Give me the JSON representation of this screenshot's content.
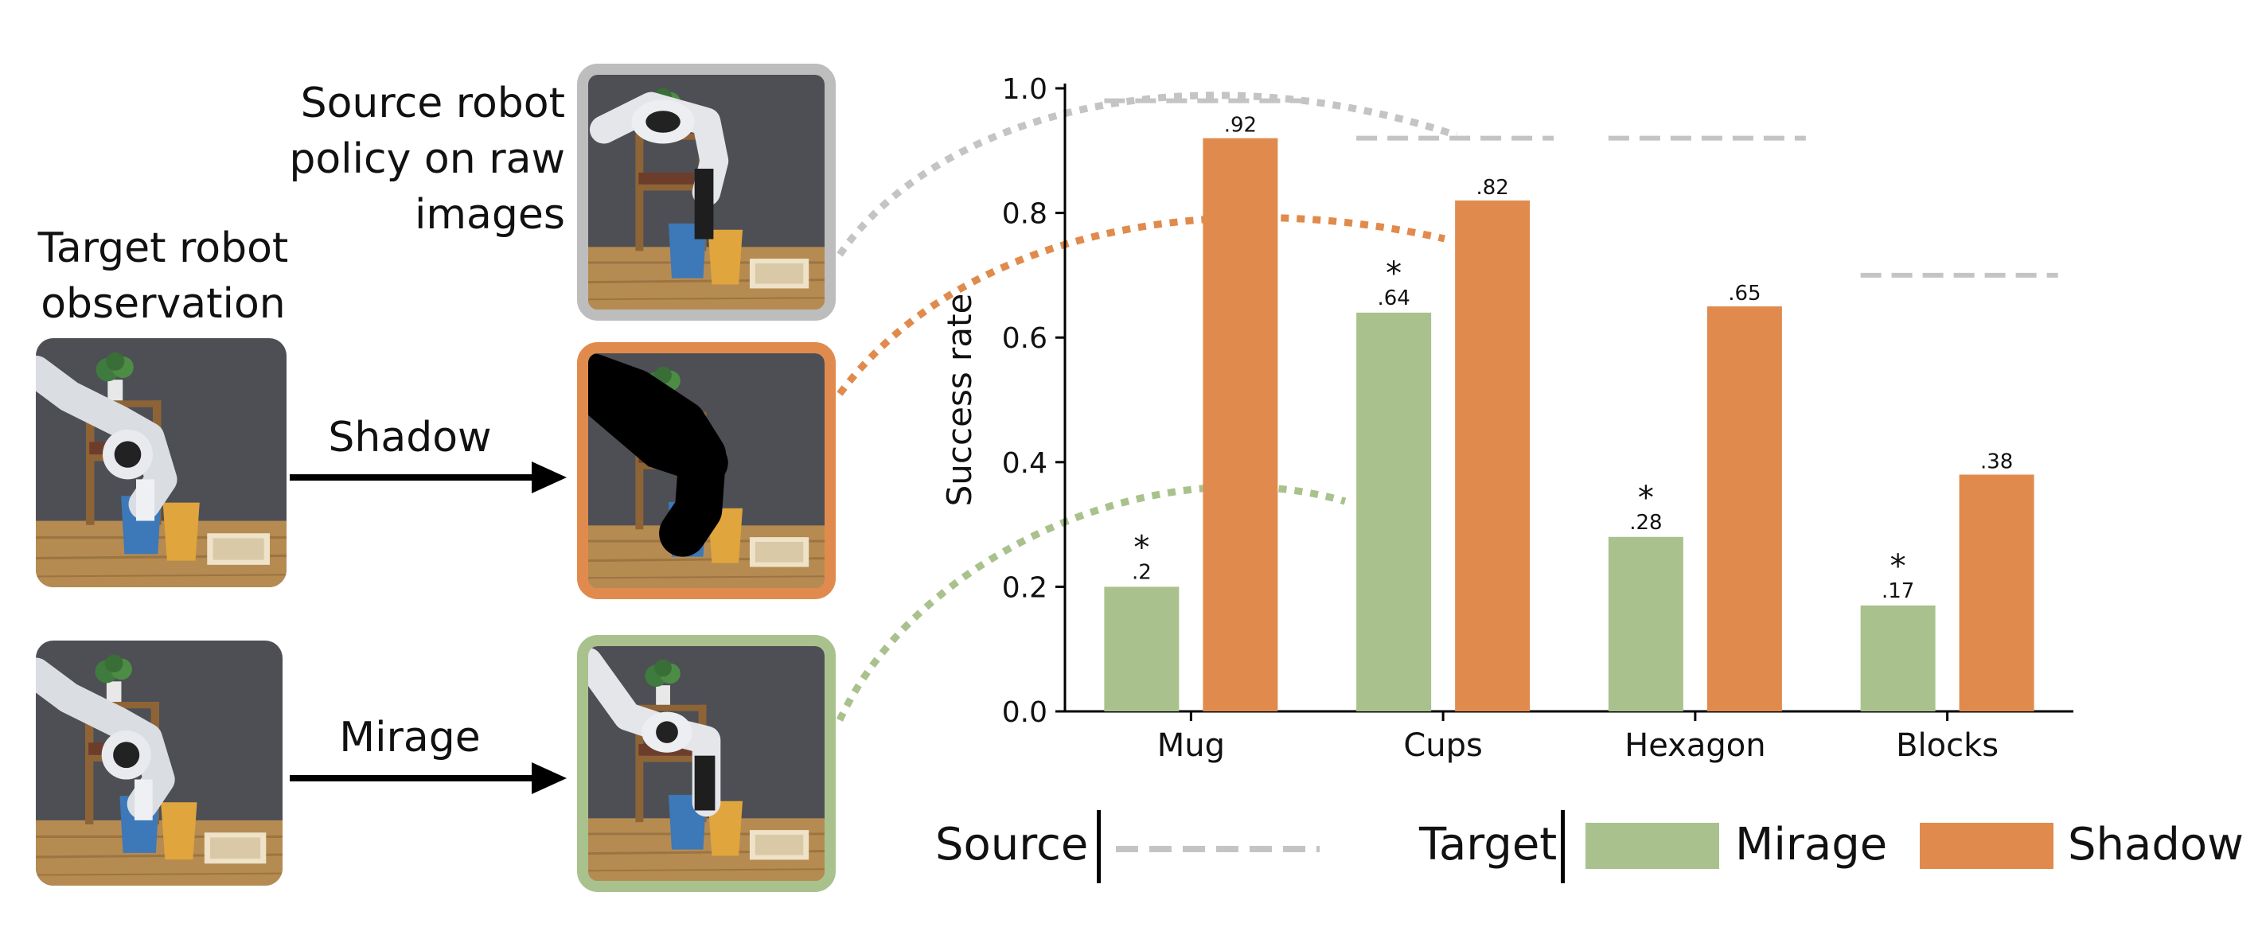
{
  "labels": {
    "source_policy": [
      "Source robot",
      "policy on raw",
      "images"
    ],
    "target_observation": [
      "Target robot",
      "observation"
    ],
    "shadow_arrow": "Shadow",
    "mirage_arrow": "Mirage"
  },
  "legend": {
    "source": "Source",
    "target": "Target",
    "mirage": "Mirage",
    "shadow": "Shadow"
  },
  "colors": {
    "mirage": "#a9c28d",
    "shadow": "#e08b4d",
    "source": "#c4c4c4",
    "source_frame": "#bdbdbd",
    "shadow_frame": "#e08b4d",
    "mirage_frame": "#a9c28d"
  },
  "chart_data": {
    "type": "bar",
    "ylabel": "Success rate",
    "ylim": [
      0,
      1.0
    ],
    "yticks": [
      "0.0",
      "0.2",
      "0.4",
      "0.6",
      "0.8",
      "1.0"
    ],
    "categories": [
      "Mug",
      "Cups",
      "Hexagon",
      "Blocks"
    ],
    "series": [
      {
        "name": "Mirage",
        "values": [
          0.2,
          0.64,
          0.28,
          0.17
        ],
        "labels": [
          ".2",
          ".64",
          ".28",
          ".17"
        ],
        "significant": [
          true,
          true,
          true,
          true
        ]
      },
      {
        "name": "Shadow",
        "values": [
          0.92,
          0.82,
          0.65,
          0.38
        ],
        "labels": [
          ".92",
          ".82",
          ".65",
          ".38"
        ]
      },
      {
        "name": "Source",
        "style": "dashed-line",
        "values": [
          0.98,
          0.92,
          0.92,
          0.7
        ]
      }
    ],
    "significance_marker": "*",
    "grid": false,
    "legend_position": "bottom"
  },
  "icons": {
    "arrow": "right-arrow-icon",
    "robot": "robot-arm-photo"
  }
}
